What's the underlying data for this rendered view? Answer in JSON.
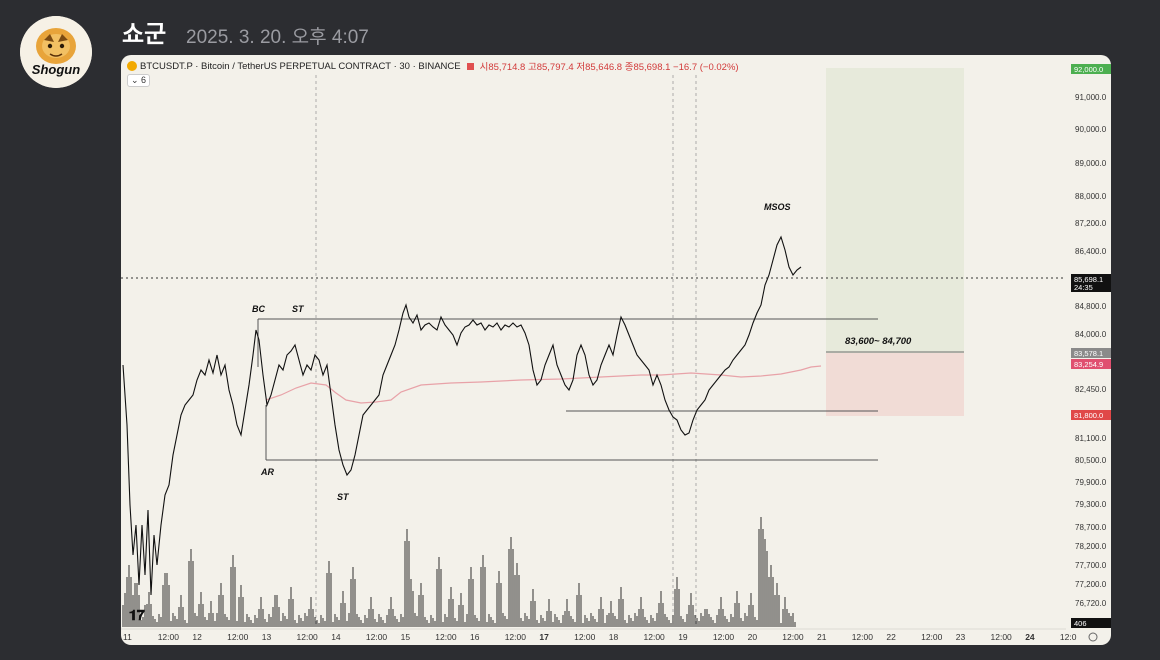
{
  "message": {
    "username": "쇼군",
    "timestamp": "2025. 3. 20. 오후 4:07",
    "avatar_text": "Shogun"
  },
  "chart_header": {
    "symbol": "BTCUSDT.P · Bitcoin / TetherUS PERPETUAL CONTRACT · 30 · BINANCE",
    "ohlc": "시85,714.8 고85,797.4 저85,646.8 종85,698.1 −16.7 (−0.02%)",
    "indicator_count": "6"
  },
  "chart_data": {
    "type": "line",
    "title": "BTCUSDT.P · Bitcoin / TetherUS PERPETUAL CONTRACT · 30 · BINANCE",
    "y_axis_ticks": [
      "91,000.0",
      "90,000.0",
      "89,000.0",
      "88,000.0",
      "87,200.0",
      "86,400.0",
      "84,800.0",
      "84,000.0",
      "82,450.0",
      "81,100.0",
      "80,500.0",
      "79,900.0",
      "79,300.0",
      "78,700.0",
      "78,200.0",
      "77,700.0",
      "77,200.0",
      "76,720.0"
    ],
    "price_tags": [
      {
        "label": "92,000.0",
        "color": "#4caf50"
      },
      {
        "label": "85,698.1",
        "sub": "24:35",
        "color": "#111111"
      },
      {
        "label": "83,578.1",
        "color": "#8a8a8a"
      },
      {
        "label": "83,254.9",
        "color": "#e05070"
      },
      {
        "label": "81,800.0",
        "color": "#e04848"
      },
      {
        "label": "406",
        "color": "#111111"
      }
    ],
    "x_axis_ticks": [
      "11",
      "12:00",
      "12",
      "12:00",
      "13",
      "12:00",
      "14",
      "12:00",
      "15",
      "12:00",
      "16",
      "12:00",
      "17",
      "12:00",
      "18",
      "12:00",
      "19",
      "12:00",
      "20",
      "12:00",
      "21",
      "12:00",
      "22",
      "12:00",
      "23",
      "12:00",
      "24",
      "12:0"
    ],
    "annotations": [
      "BC",
      "ST",
      "AR",
      "ST",
      "MSOS",
      "83,600~ 84,700"
    ]
  }
}
